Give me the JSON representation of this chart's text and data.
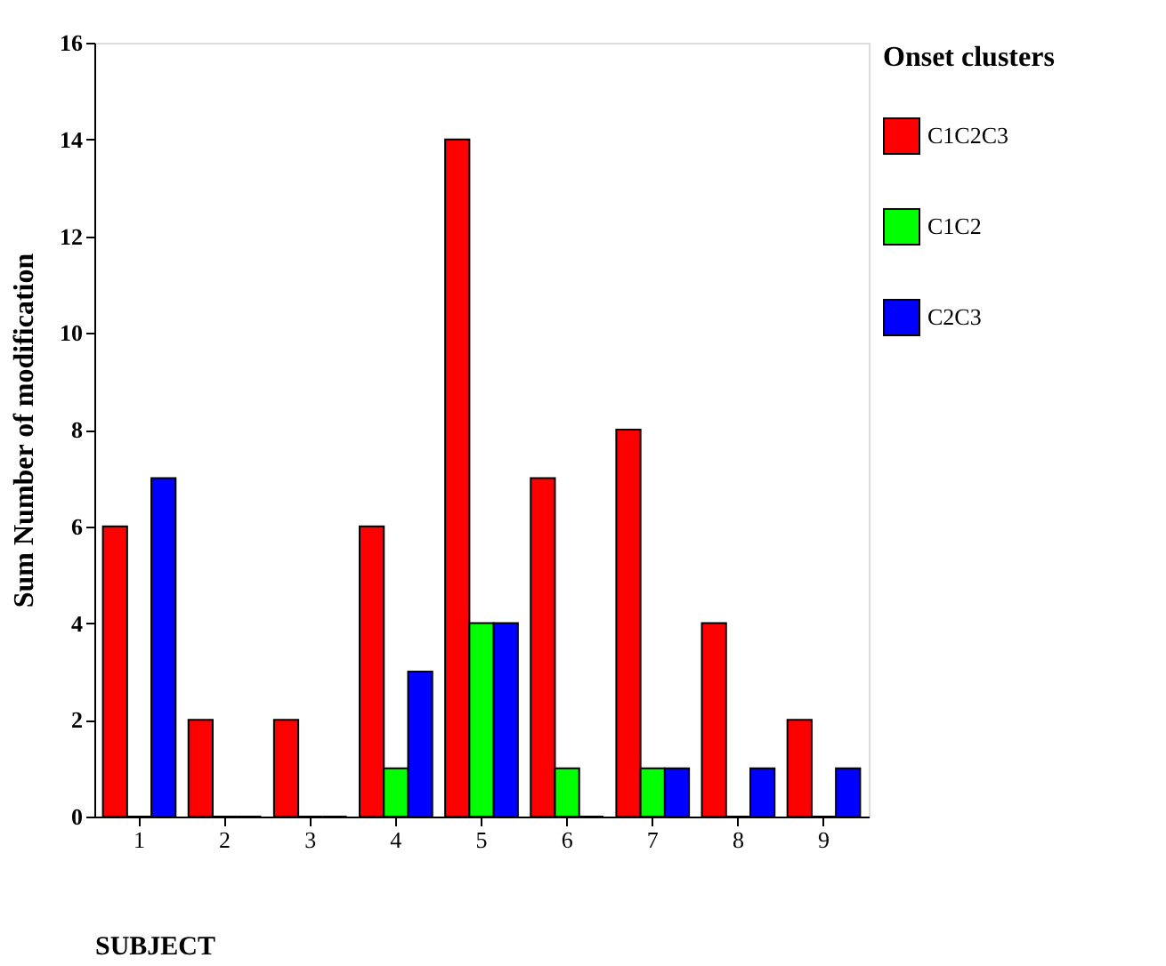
{
  "chart_data": {
    "type": "bar",
    "xlabel": "SUBJECT",
    "ylabel": "Sum Number of modification",
    "legend_title": "Onset clusters",
    "categories": [
      "1",
      "2",
      "3",
      "4",
      "5",
      "6",
      "7",
      "8",
      "9"
    ],
    "series": [
      {
        "name": "C1C2C3",
        "color": "#ff0000",
        "values": [
          6,
          2,
          2,
          6,
          14,
          7,
          8,
          4,
          2
        ]
      },
      {
        "name": "C1C2",
        "color": "#00ff00",
        "values": [
          0,
          0,
          0,
          1,
          4,
          1,
          1,
          0,
          0
        ]
      },
      {
        "name": "C2C3",
        "color": "#0000ff",
        "values": [
          7,
          0,
          0,
          3,
          4,
          0,
          1,
          1,
          1
        ]
      }
    ],
    "ylim": [
      0,
      16
    ],
    "yticks": [
      0,
      2,
      4,
      6,
      8,
      10,
      12,
      14,
      16
    ],
    "grid": false,
    "legend": "right"
  }
}
